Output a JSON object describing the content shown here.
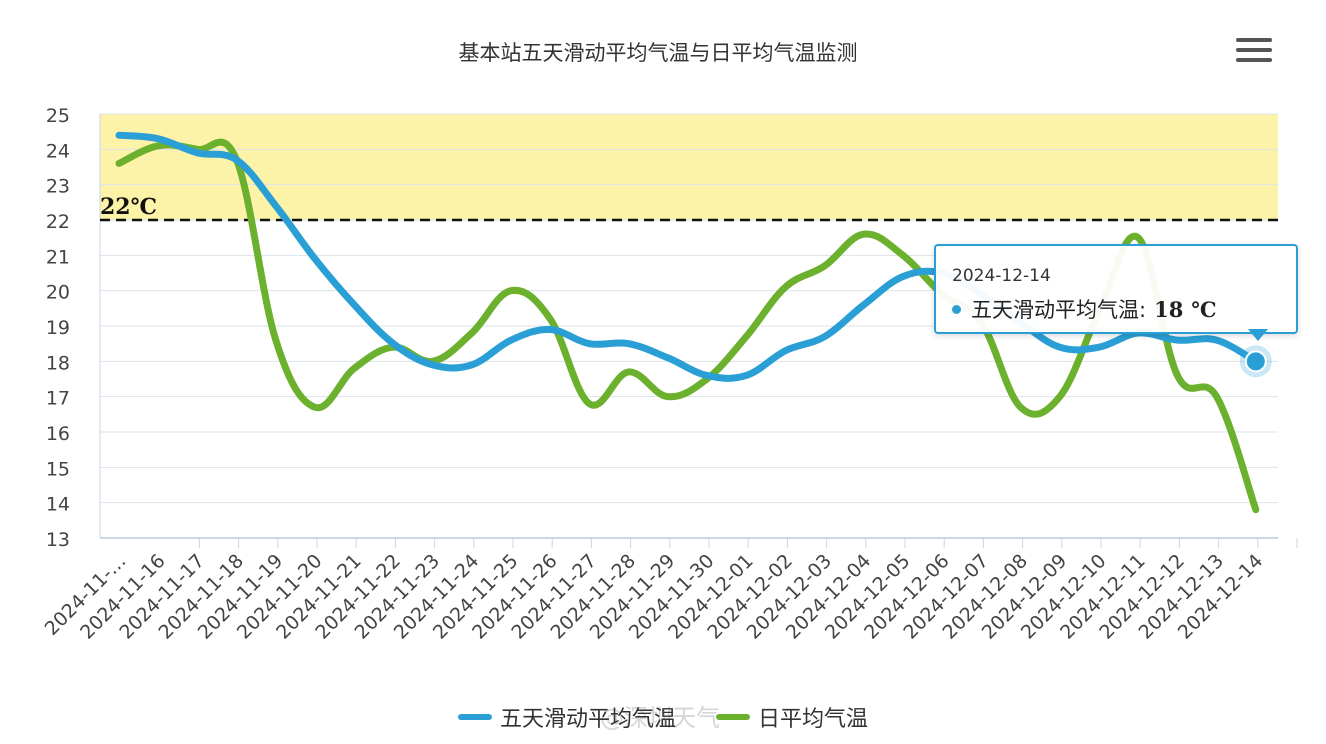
{
  "chart_data": {
    "type": "line",
    "title": "基本站五天滑动平均气温与日平均气温监测",
    "xlabel": "",
    "ylabel": "",
    "ylim": [
      13,
      25
    ],
    "yticks": [
      13,
      14,
      15,
      16,
      17,
      18,
      19,
      20,
      21,
      22,
      23,
      24,
      25
    ],
    "categories": [
      "2024-11-…",
      "2024-11-16",
      "2024-11-17",
      "2024-11-18",
      "2024-11-19",
      "2024-11-20",
      "2024-11-21",
      "2024-11-22",
      "2024-11-23",
      "2024-11-24",
      "2024-11-25",
      "2024-11-26",
      "2024-11-27",
      "2024-11-28",
      "2024-11-29",
      "2024-11-30",
      "2024-12-01",
      "2024-12-02",
      "2024-12-03",
      "2024-12-04",
      "2024-12-05",
      "2024-12-06",
      "2024-12-07",
      "2024-12-08",
      "2024-12-09",
      "2024-12-10",
      "2024-12-11",
      "2024-12-12",
      "2024-12-13",
      "2024-12-14"
    ],
    "series": [
      {
        "name": "五天滑动平均气温",
        "color": "#2a9fd6",
        "values": [
          24.4,
          24.3,
          23.9,
          23.7,
          22.4,
          20.9,
          19.6,
          18.5,
          17.9,
          17.9,
          18.6,
          18.9,
          18.5,
          18.5,
          18.1,
          17.6,
          17.6,
          18.3,
          18.7,
          19.6,
          20.4,
          20.5,
          19.9,
          19.1,
          18.4,
          18.4,
          18.8,
          18.6,
          18.6,
          18.0
        ]
      },
      {
        "name": "日平均气温",
        "color": "#6bb12e",
        "values": [
          23.6,
          24.1,
          24.0,
          23.7,
          18.6,
          16.7,
          17.8,
          18.4,
          18.0,
          18.8,
          20.0,
          19.2,
          16.8,
          17.7,
          17.0,
          17.5,
          18.7,
          20.1,
          20.7,
          21.6,
          21.0,
          19.9,
          19.1,
          16.7,
          17.0,
          19.4,
          21.5,
          17.6,
          17.0,
          13.8
        ]
      }
    ],
    "threshold": {
      "value": 22,
      "label": "22℃"
    },
    "band": {
      "from": 22,
      "to": 25,
      "color": "#fdf3a8"
    },
    "grid": true,
    "legend": "bottom-center"
  },
  "tooltip": {
    "date": "2024-12-14",
    "series_label": "五天滑动平均气温:",
    "value": "18",
    "unit": "℃"
  },
  "watermark": "@深圳天气",
  "menu": {
    "icon": "hamburger-menu-icon"
  }
}
